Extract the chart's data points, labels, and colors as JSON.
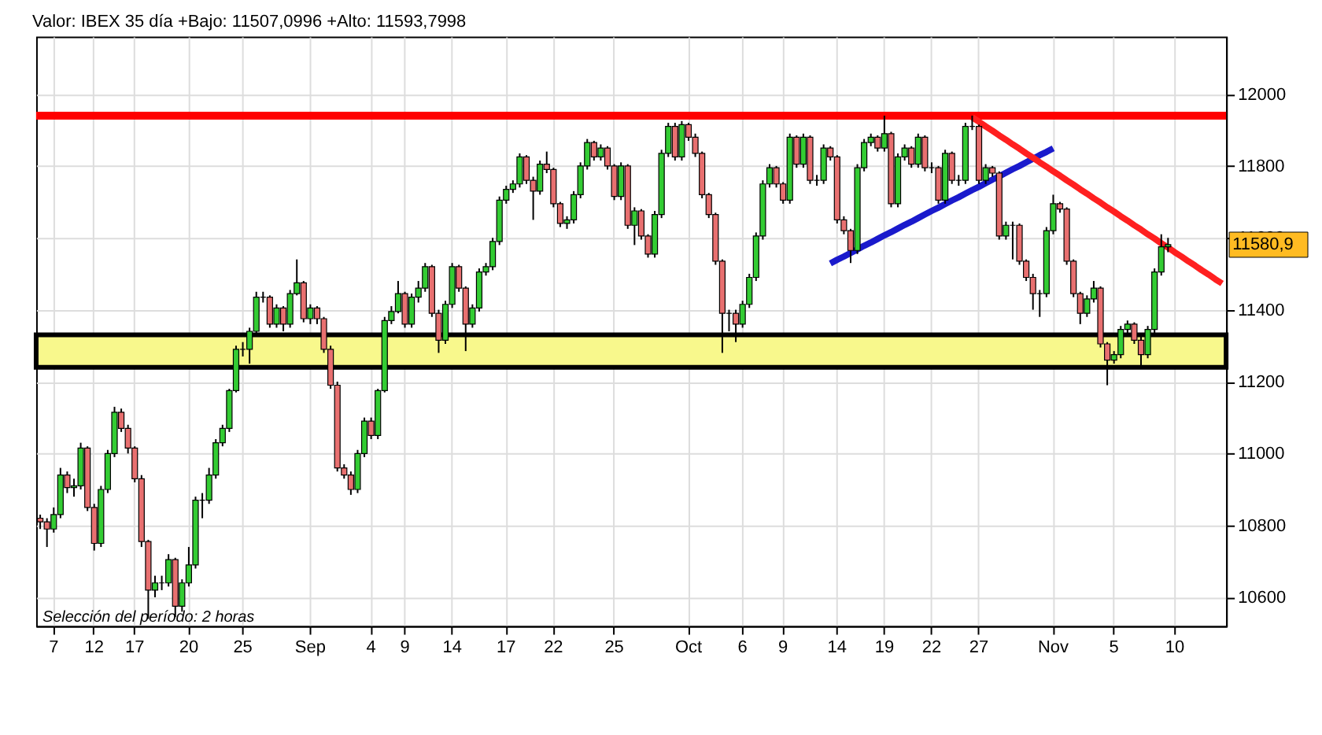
{
  "chart_data": {
    "type": "candlestick",
    "title": "Valor: IBEX 35   día +Bajo: 11507,0996 +Alto: 11593,7998",
    "categories": [
      null,
      null,
      "7",
      null,
      null,
      null,
      null,
      null,
      "12",
      null,
      null,
      null,
      null,
      null,
      "17",
      null,
      null,
      null,
      null,
      null,
      null,
      null,
      "20",
      null,
      null,
      null,
      null,
      null,
      null,
      null,
      "25",
      null,
      null,
      null,
      null,
      null,
      null,
      null,
      null,
      null,
      "Sep",
      null,
      null,
      null,
      null,
      null,
      null,
      null,
      null,
      "4",
      null,
      null,
      null,
      null,
      "9",
      null,
      null,
      null,
      null,
      null,
      null,
      "14",
      null,
      null,
      null,
      null,
      null,
      null,
      null,
      "17",
      null,
      null,
      null,
      null,
      null,
      null,
      "22",
      null,
      null,
      null,
      null,
      null,
      null,
      null,
      null,
      "25",
      null,
      null,
      null,
      null,
      null,
      null,
      null,
      null,
      null,
      null,
      "Oct",
      null,
      null,
      null,
      null,
      null,
      null,
      null,
      "6",
      null,
      null,
      null,
      null,
      null,
      "9",
      null,
      null,
      null,
      null,
      null,
      null,
      null,
      "14",
      null,
      null,
      null,
      null,
      null,
      null,
      "19",
      null,
      null,
      null,
      null,
      null,
      null,
      "22",
      null,
      null,
      null,
      null,
      null,
      null,
      "27",
      null,
      null,
      null,
      null,
      null,
      null,
      null,
      null,
      null,
      null,
      "Nov",
      null,
      null,
      null,
      null,
      null,
      null,
      null,
      null,
      "5",
      null,
      null,
      null,
      null,
      null,
      null,
      null,
      null,
      "10",
      null,
      null,
      null,
      null,
      null,
      null,
      null
    ],
    "ohlc": [
      [
        10820,
        10830,
        10790,
        10810
      ],
      [
        10810,
        10820,
        10740,
        10790
      ],
      [
        10790,
        10850,
        10780,
        10830
      ],
      [
        10830,
        10960,
        10820,
        10940
      ],
      [
        10940,
        10950,
        10890,
        10905
      ],
      [
        10905,
        10930,
        10880,
        10910
      ],
      [
        10910,
        11030,
        10900,
        11015
      ],
      [
        11015,
        11020,
        10840,
        10850
      ],
      [
        10850,
        10860,
        10730,
        10750
      ],
      [
        10750,
        10910,
        10740,
        10900
      ],
      [
        10900,
        11010,
        10890,
        11000
      ],
      [
        11000,
        11130,
        10990,
        11115
      ],
      [
        11115,
        11125,
        11060,
        11070
      ],
      [
        11070,
        11080,
        11000,
        11015
      ],
      [
        11015,
        11020,
        10920,
        10930
      ],
      [
        10930,
        10940,
        10740,
        10755
      ],
      [
        10755,
        10760,
        10540,
        10620
      ],
      [
        10620,
        10660,
        10600,
        10640
      ],
      [
        10640,
        10660,
        10620,
        10640
      ],
      [
        10640,
        10720,
        10630,
        10705
      ],
      [
        10705,
        10710,
        10545,
        10575
      ],
      [
        10575,
        10650,
        10560,
        10640
      ],
      [
        10640,
        10740,
        10630,
        10690
      ],
      [
        10690,
        10880,
        10680,
        10870
      ],
      [
        10870,
        10890,
        10820,
        10870
      ],
      [
        10870,
        10960,
        10860,
        10940
      ],
      [
        10940,
        11040,
        10930,
        11030
      ],
      [
        11030,
        11080,
        11020,
        11070
      ],
      [
        11070,
        11180,
        11060,
        11175
      ],
      [
        11175,
        11300,
        11170,
        11290
      ],
      [
        11290,
        11310,
        11270,
        11290
      ],
      [
        11290,
        11350,
        11250,
        11340
      ],
      [
        11340,
        11450,
        11330,
        11435
      ],
      [
        11435,
        11450,
        11420,
        11435
      ],
      [
        11435,
        11440,
        11350,
        11360
      ],
      [
        11360,
        11415,
        11350,
        11405
      ],
      [
        11405,
        11410,
        11340,
        11360
      ],
      [
        11360,
        11455,
        11350,
        11445
      ],
      [
        11445,
        11540,
        11440,
        11475
      ],
      [
        11475,
        11480,
        11365,
        11375
      ],
      [
        11375,
        11415,
        11360,
        11405
      ],
      [
        11405,
        11410,
        11360,
        11375
      ],
      [
        11375,
        11380,
        11280,
        11290
      ],
      [
        11290,
        11300,
        11180,
        11190
      ],
      [
        11190,
        11200,
        10950,
        10960
      ],
      [
        10960,
        10970,
        10930,
        10940
      ],
      [
        10940,
        10950,
        10885,
        10900
      ],
      [
        10900,
        11010,
        10890,
        11000
      ],
      [
        11000,
        11100,
        10990,
        11090
      ],
      [
        11090,
        11100,
        11040,
        11050
      ],
      [
        11050,
        11180,
        11040,
        11175
      ],
      [
        11175,
        11380,
        11170,
        11370
      ],
      [
        11370,
        11410,
        11360,
        11395
      ],
      [
        11395,
        11480,
        11390,
        11445
      ],
      [
        11445,
        11450,
        11350,
        11360
      ],
      [
        11360,
        11445,
        11350,
        11435
      ],
      [
        11435,
        11480,
        11420,
        11460
      ],
      [
        11460,
        11530,
        11450,
        11520
      ],
      [
        11520,
        11525,
        11380,
        11390
      ],
      [
        11390,
        11400,
        11280,
        11315
      ],
      [
        11315,
        11425,
        11305,
        11415
      ],
      [
        11415,
        11530,
        11405,
        11520
      ],
      [
        11520,
        11525,
        11450,
        11460
      ],
      [
        11460,
        11465,
        11285,
        11360
      ],
      [
        11360,
        11415,
        11350,
        11405
      ],
      [
        11405,
        11515,
        11395,
        11505
      ],
      [
        11505,
        11530,
        11495,
        11520
      ],
      [
        11520,
        11600,
        11510,
        11590
      ],
      [
        11590,
        11715,
        11580,
        11705
      ],
      [
        11705,
        11745,
        11695,
        11735
      ],
      [
        11735,
        11760,
        11725,
        11750
      ],
      [
        11750,
        11835,
        11740,
        11825
      ],
      [
        11825,
        11830,
        11750,
        11760
      ],
      [
        11760,
        11770,
        11650,
        11730
      ],
      [
        11730,
        11815,
        11720,
        11805
      ],
      [
        11805,
        11840,
        11780,
        11790
      ],
      [
        11790,
        11795,
        11685,
        11695
      ],
      [
        11695,
        11700,
        11630,
        11640
      ],
      [
        11640,
        11660,
        11625,
        11650
      ],
      [
        11650,
        11730,
        11640,
        11720
      ],
      [
        11720,
        11810,
        11710,
        11800
      ],
      [
        11800,
        11875,
        11790,
        11865
      ],
      [
        11865,
        11870,
        11815,
        11825
      ],
      [
        11825,
        11860,
        11815,
        11850
      ],
      [
        11850,
        11855,
        11790,
        11800
      ],
      [
        11800,
        11805,
        11705,
        11715
      ],
      [
        11715,
        11810,
        11705,
        11800
      ],
      [
        11800,
        11805,
        11625,
        11635
      ],
      [
        11635,
        11685,
        11580,
        11675
      ],
      [
        11675,
        11680,
        11595,
        11605
      ],
      [
        11605,
        11610,
        11545,
        11555
      ],
      [
        11555,
        11675,
        11545,
        11665
      ],
      [
        11665,
        11845,
        11655,
        11835
      ],
      [
        11835,
        11920,
        11825,
        11910
      ],
      [
        11910,
        11920,
        11815,
        11825
      ],
      [
        11825,
        11925,
        11815,
        11915
      ],
      [
        11915,
        11920,
        11870,
        11880
      ],
      [
        11880,
        11890,
        11825,
        11835
      ],
      [
        11835,
        11840,
        11710,
        11720
      ],
      [
        11720,
        11725,
        11655,
        11665
      ],
      [
        11665,
        11670,
        11525,
        11535
      ],
      [
        11535,
        11540,
        11280,
        11390
      ],
      [
        11390,
        11400,
        11340,
        11390
      ],
      [
        11390,
        11400,
        11310,
        11360
      ],
      [
        11360,
        11425,
        11350,
        11415
      ],
      [
        11415,
        11500,
        11405,
        11490
      ],
      [
        11490,
        11615,
        11480,
        11605
      ],
      [
        11605,
        11760,
        11595,
        11750
      ],
      [
        11750,
        11805,
        11740,
        11795
      ],
      [
        11795,
        11800,
        11740,
        11750
      ],
      [
        11750,
        11755,
        11695,
        11705
      ],
      [
        11705,
        11890,
        11695,
        11880
      ],
      [
        11880,
        11885,
        11795,
        11805
      ],
      [
        11805,
        11890,
        11795,
        11880
      ],
      [
        11880,
        11885,
        11750,
        11760
      ],
      [
        11760,
        11775,
        11745,
        11760
      ],
      [
        11760,
        11860,
        11750,
        11850
      ],
      [
        11850,
        11855,
        11815,
        11825
      ],
      [
        11825,
        11830,
        11640,
        11650
      ],
      [
        11650,
        11660,
        11610,
        11620
      ],
      [
        11620,
        11625,
        11530,
        11565
      ],
      [
        11565,
        11805,
        11555,
        11795
      ],
      [
        11795,
        11875,
        11785,
        11865
      ],
      [
        11865,
        11890,
        11855,
        11880
      ],
      [
        11880,
        11885,
        11840,
        11850
      ],
      [
        11850,
        11940,
        11840,
        11890
      ],
      [
        11890,
        11895,
        11685,
        11695
      ],
      [
        11695,
        11835,
        11685,
        11825
      ],
      [
        11825,
        11860,
        11815,
        11850
      ],
      [
        11850,
        11855,
        11795,
        11805
      ],
      [
        11805,
        11890,
        11795,
        11880
      ],
      [
        11880,
        11885,
        11785,
        11795
      ],
      [
        11795,
        11810,
        11780,
        11795
      ],
      [
        11795,
        11800,
        11695,
        11705
      ],
      [
        11705,
        11845,
        11695,
        11835
      ],
      [
        11835,
        11840,
        11750,
        11760
      ],
      [
        11760,
        11775,
        11745,
        11760
      ],
      [
        11760,
        11920,
        11750,
        11910
      ],
      [
        11910,
        11940,
        11900,
        11910
      ],
      [
        11910,
        11915,
        11750,
        11760
      ],
      [
        11760,
        11805,
        11750,
        11795
      ],
      [
        11795,
        11800,
        11770,
        11780
      ],
      [
        11780,
        11785,
        11595,
        11605
      ],
      [
        11605,
        11645,
        11595,
        11635
      ],
      [
        11635,
        11645,
        11540,
        11635
      ],
      [
        11635,
        11640,
        11525,
        11535
      ],
      [
        11535,
        11540,
        11480,
        11490
      ],
      [
        11490,
        11500,
        11400,
        11445
      ],
      [
        11445,
        11455,
        11380,
        11445
      ],
      [
        11445,
        11630,
        11435,
        11620
      ],
      [
        11620,
        11720,
        11610,
        11695
      ],
      [
        11695,
        11700,
        11670,
        11680
      ],
      [
        11680,
        11685,
        11525,
        11535
      ],
      [
        11535,
        11540,
        11435,
        11445
      ],
      [
        11445,
        11450,
        11360,
        11390
      ],
      [
        11390,
        11440,
        11380,
        11430
      ],
      [
        11430,
        11480,
        11420,
        11460
      ],
      [
        11460,
        11465,
        11295,
        11305
      ],
      [
        11305,
        11310,
        11190,
        11260
      ],
      [
        11260,
        11285,
        11250,
        11275
      ],
      [
        11275,
        11355,
        11265,
        11345
      ],
      [
        11345,
        11370,
        11335,
        11360
      ],
      [
        11360,
        11365,
        11305,
        11315
      ],
      [
        11315,
        11325,
        11245,
        11275
      ],
      [
        11275,
        11355,
        11265,
        11345
      ],
      [
        11345,
        11515,
        11335,
        11505
      ],
      [
        11505,
        11610,
        11495,
        11575
      ],
      [
        11575,
        11600,
        11560,
        11580.9
      ],
      null,
      null,
      null,
      null,
      null,
      null,
      null,
      null
    ],
    "series": [
      {
        "type": "line",
        "color": "#1a1acc",
        "values": [
          null,
          null,
          null,
          null,
          null,
          null,
          null,
          null,
          null,
          null,
          null,
          null,
          null,
          null,
          null,
          null,
          null,
          null,
          null,
          null,
          null,
          null,
          null,
          null,
          null,
          null,
          null,
          null,
          null,
          null,
          null,
          null,
          null,
          null,
          null,
          null,
          null,
          null,
          null,
          null,
          null,
          null,
          null,
          null,
          null,
          null,
          null,
          null,
          null,
          null,
          null,
          null,
          null,
          null,
          null,
          null,
          null,
          null,
          null,
          null,
          null,
          null,
          null,
          null,
          null,
          null,
          null,
          null,
          null,
          null,
          null,
          null,
          null,
          null,
          null,
          null,
          null,
          null,
          null,
          null,
          null,
          null,
          null,
          null,
          null,
          null,
          null,
          null,
          null,
          null,
          null,
          null,
          null,
          null,
          null,
          null,
          null,
          null,
          null,
          null,
          null,
          null,
          null,
          null,
          null,
          null,
          null,
          null,
          null,
          null,
          null,
          null,
          null,
          null,
          null,
          null,
          null,
          11529,
          11539,
          11548,
          11558,
          11568,
          11578,
          11587,
          11597,
          11607,
          11616,
          11626,
          11636,
          11645,
          11655,
          11665,
          11675,
          11684,
          11694,
          11704,
          11713,
          11723,
          11733,
          11742,
          11752,
          11762,
          11771,
          11781,
          11791,
          11800,
          11810,
          11820,
          11830,
          11839,
          11849,
          null,
          null,
          null,
          null,
          null,
          null,
          null,
          null,
          null,
          null,
          null,
          null,
          null,
          null,
          null,
          null,
          null,
          null,
          null,
          null,
          null,
          null,
          null,
          null,
          null
        ]
      },
      {
        "type": "line",
        "color": "#ff2020",
        "values": [
          null,
          null,
          null,
          null,
          null,
          null,
          null,
          null,
          null,
          null,
          null,
          null,
          null,
          null,
          null,
          null,
          null,
          null,
          null,
          null,
          null,
          null,
          null,
          null,
          null,
          null,
          null,
          null,
          null,
          null,
          null,
          null,
          null,
          null,
          null,
          null,
          null,
          null,
          null,
          null,
          null,
          null,
          null,
          null,
          null,
          null,
          null,
          null,
          null,
          null,
          null,
          null,
          null,
          null,
          null,
          null,
          null,
          null,
          null,
          null,
          null,
          null,
          null,
          null,
          null,
          null,
          null,
          null,
          null,
          null,
          null,
          null,
          null,
          null,
          null,
          null,
          null,
          null,
          null,
          null,
          null,
          null,
          null,
          null,
          null,
          null,
          null,
          null,
          null,
          null,
          null,
          null,
          null,
          null,
          null,
          null,
          null,
          null,
          null,
          null,
          null,
          null,
          null,
          null,
          null,
          null,
          null,
          null,
          null,
          null,
          null,
          null,
          null,
          null,
          null,
          null,
          null,
          null,
          null,
          null,
          null,
          null,
          null,
          null,
          null,
          null,
          null,
          null,
          null,
          null,
          null,
          null,
          null,
          null,
          null,
          null,
          null,
          null,
          11935,
          11923,
          11910,
          11898,
          11885,
          11873,
          11860,
          11848,
          11835,
          11823,
          11810,
          11798,
          11785,
          11773,
          11760,
          11748,
          11735,
          11723,
          11710,
          11698,
          11685,
          11673,
          11660,
          11648,
          11635,
          11623,
          11610,
          11598,
          11585,
          11573,
          11560,
          11548,
          11535,
          11523,
          11510,
          11498,
          11485,
          11473
        ]
      }
    ],
    "ref_lines": [
      {
        "axis": "y",
        "value": 11940,
        "color": "#ff0000"
      }
    ],
    "bands": [
      {
        "axis": "y",
        "from": 11240,
        "to": 11330,
        "color": "#f8f88c"
      }
    ],
    "annotations": [
      "Selección del período: 2 horas",
      "11580,9"
    ],
    "ylim": [
      10520,
      12160
    ],
    "yticks": [
      10600,
      10800,
      11000,
      11200,
      11400,
      11600,
      11800,
      12000
    ],
    "grid": true
  }
}
